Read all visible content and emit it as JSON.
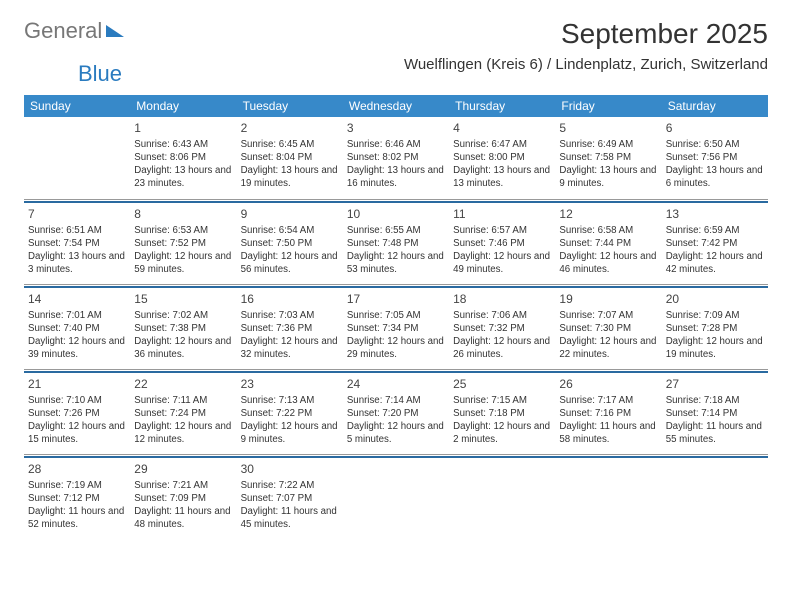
{
  "logo": {
    "text1": "General",
    "text2": "Blue"
  },
  "month_title": "September 2025",
  "location": "Wuelflingen (Kreis 6) / Lindenplatz, Zurich, Switzerland",
  "colors": {
    "header_bg": "#3789c9",
    "header_text": "#ffffff",
    "sep_line": "#2a6aa0",
    "logo_gray": "#777777",
    "logo_blue": "#2a7bbf"
  },
  "day_names": [
    "Sunday",
    "Monday",
    "Tuesday",
    "Wednesday",
    "Thursday",
    "Friday",
    "Saturday"
  ],
  "weeks": [
    [
      null,
      {
        "n": "1",
        "sr": "6:43 AM",
        "ss": "8:06 PM",
        "dl": "13 hours and 23 minutes."
      },
      {
        "n": "2",
        "sr": "6:45 AM",
        "ss": "8:04 PM",
        "dl": "13 hours and 19 minutes."
      },
      {
        "n": "3",
        "sr": "6:46 AM",
        "ss": "8:02 PM",
        "dl": "13 hours and 16 minutes."
      },
      {
        "n": "4",
        "sr": "6:47 AM",
        "ss": "8:00 PM",
        "dl": "13 hours and 13 minutes."
      },
      {
        "n": "5",
        "sr": "6:49 AM",
        "ss": "7:58 PM",
        "dl": "13 hours and 9 minutes."
      },
      {
        "n": "6",
        "sr": "6:50 AM",
        "ss": "7:56 PM",
        "dl": "13 hours and 6 minutes."
      }
    ],
    [
      {
        "n": "7",
        "sr": "6:51 AM",
        "ss": "7:54 PM",
        "dl": "13 hours and 3 minutes."
      },
      {
        "n": "8",
        "sr": "6:53 AM",
        "ss": "7:52 PM",
        "dl": "12 hours and 59 minutes."
      },
      {
        "n": "9",
        "sr": "6:54 AM",
        "ss": "7:50 PM",
        "dl": "12 hours and 56 minutes."
      },
      {
        "n": "10",
        "sr": "6:55 AM",
        "ss": "7:48 PM",
        "dl": "12 hours and 53 minutes."
      },
      {
        "n": "11",
        "sr": "6:57 AM",
        "ss": "7:46 PM",
        "dl": "12 hours and 49 minutes."
      },
      {
        "n": "12",
        "sr": "6:58 AM",
        "ss": "7:44 PM",
        "dl": "12 hours and 46 minutes."
      },
      {
        "n": "13",
        "sr": "6:59 AM",
        "ss": "7:42 PM",
        "dl": "12 hours and 42 minutes."
      }
    ],
    [
      {
        "n": "14",
        "sr": "7:01 AM",
        "ss": "7:40 PM",
        "dl": "12 hours and 39 minutes."
      },
      {
        "n": "15",
        "sr": "7:02 AM",
        "ss": "7:38 PM",
        "dl": "12 hours and 36 minutes."
      },
      {
        "n": "16",
        "sr": "7:03 AM",
        "ss": "7:36 PM",
        "dl": "12 hours and 32 minutes."
      },
      {
        "n": "17",
        "sr": "7:05 AM",
        "ss": "7:34 PM",
        "dl": "12 hours and 29 minutes."
      },
      {
        "n": "18",
        "sr": "7:06 AM",
        "ss": "7:32 PM",
        "dl": "12 hours and 26 minutes."
      },
      {
        "n": "19",
        "sr": "7:07 AM",
        "ss": "7:30 PM",
        "dl": "12 hours and 22 minutes."
      },
      {
        "n": "20",
        "sr": "7:09 AM",
        "ss": "7:28 PM",
        "dl": "12 hours and 19 minutes."
      }
    ],
    [
      {
        "n": "21",
        "sr": "7:10 AM",
        "ss": "7:26 PM",
        "dl": "12 hours and 15 minutes."
      },
      {
        "n": "22",
        "sr": "7:11 AM",
        "ss": "7:24 PM",
        "dl": "12 hours and 12 minutes."
      },
      {
        "n": "23",
        "sr": "7:13 AM",
        "ss": "7:22 PM",
        "dl": "12 hours and 9 minutes."
      },
      {
        "n": "24",
        "sr": "7:14 AM",
        "ss": "7:20 PM",
        "dl": "12 hours and 5 minutes."
      },
      {
        "n": "25",
        "sr": "7:15 AM",
        "ss": "7:18 PM",
        "dl": "12 hours and 2 minutes."
      },
      {
        "n": "26",
        "sr": "7:17 AM",
        "ss": "7:16 PM",
        "dl": "11 hours and 58 minutes."
      },
      {
        "n": "27",
        "sr": "7:18 AM",
        "ss": "7:14 PM",
        "dl": "11 hours and 55 minutes."
      }
    ],
    [
      {
        "n": "28",
        "sr": "7:19 AM",
        "ss": "7:12 PM",
        "dl": "11 hours and 52 minutes."
      },
      {
        "n": "29",
        "sr": "7:21 AM",
        "ss": "7:09 PM",
        "dl": "11 hours and 48 minutes."
      },
      {
        "n": "30",
        "sr": "7:22 AM",
        "ss": "7:07 PM",
        "dl": "11 hours and 45 minutes."
      },
      null,
      null,
      null,
      null
    ]
  ],
  "labels": {
    "sunrise": "Sunrise:",
    "sunset": "Sunset:",
    "daylight": "Daylight:"
  }
}
